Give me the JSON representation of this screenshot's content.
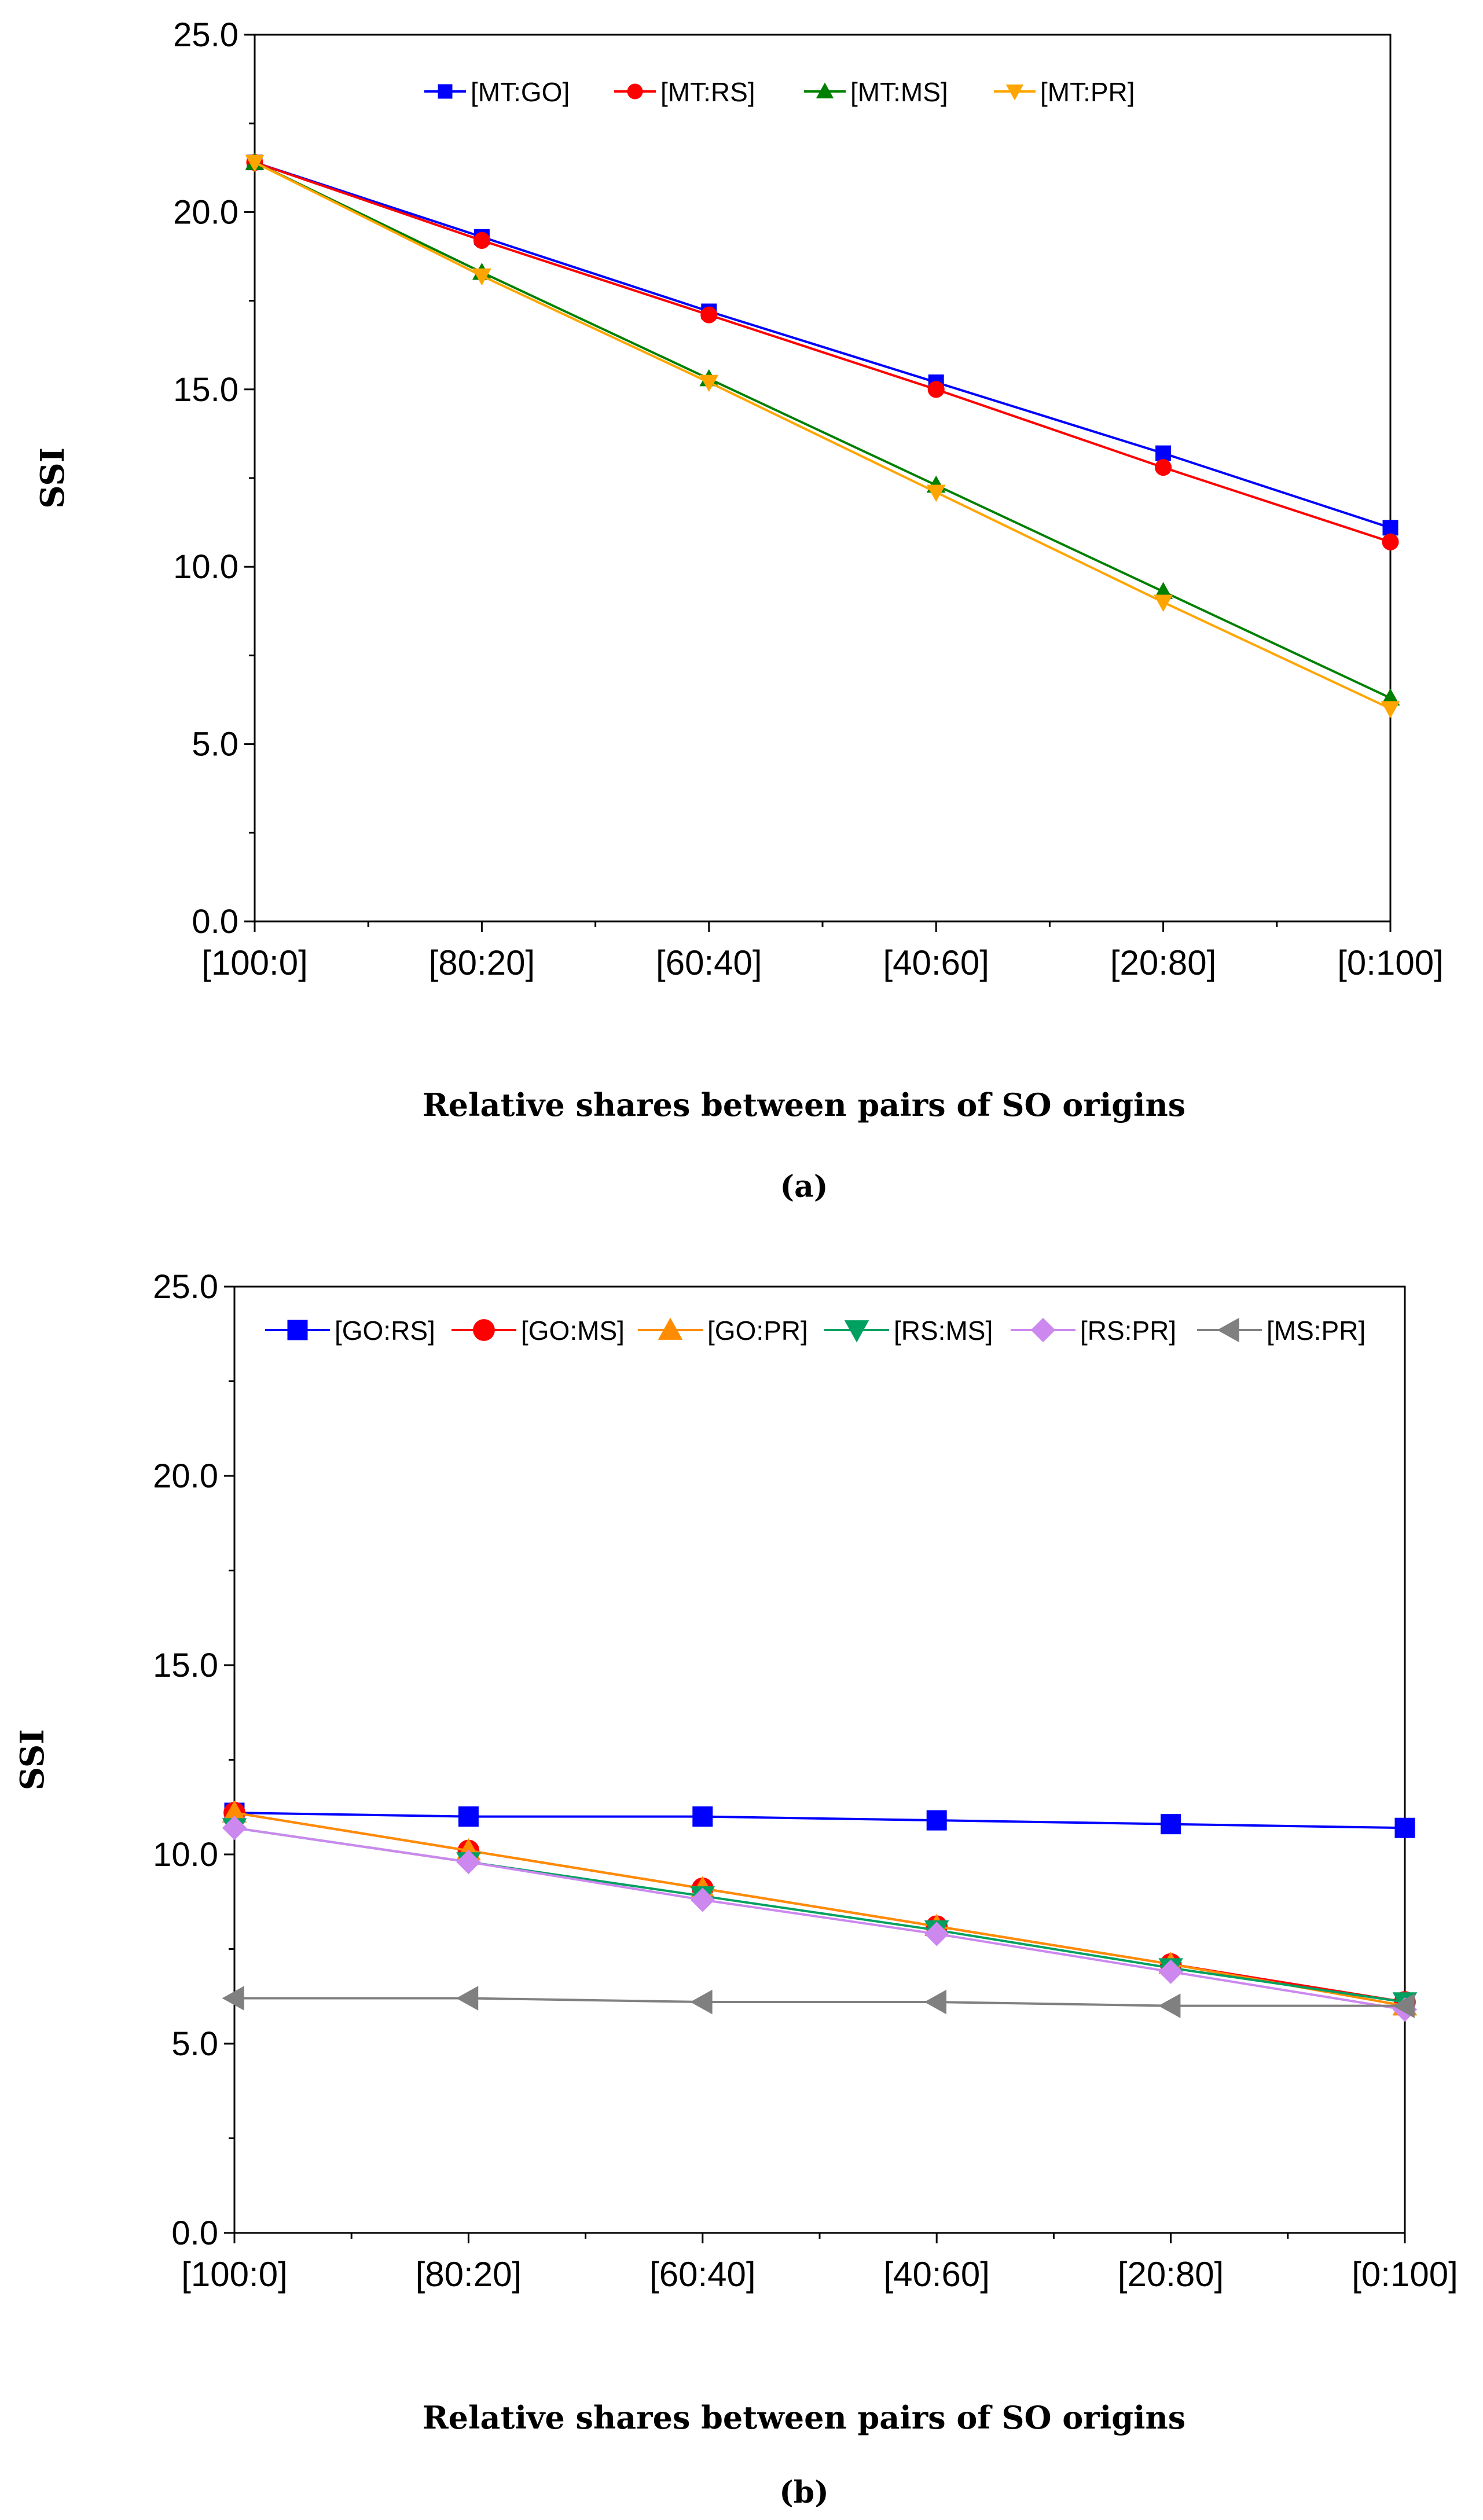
{
  "chart_data": [
    {
      "type": "line",
      "panel_label": "(a)",
      "xlabel": "Relative shares between pairs of SO origins",
      "ylabel": "SSI",
      "categories": [
        "[100:0]",
        "[80:20]",
        "[60:40]",
        "[40:60]",
        "[20:80]",
        "[0:100]"
      ],
      "ylim": [
        0,
        25
      ],
      "yticks": [
        "0.0",
        "5.0",
        "10.0",
        "15.0",
        "20.0",
        "25.0"
      ],
      "legend_position": "top-center",
      "series": [
        {
          "name": "[MT:GO]",
          "color": "#0000ff",
          "marker": "square",
          "values": [
            21.4,
            19.3,
            17.2,
            15.2,
            13.2,
            11.1
          ]
        },
        {
          "name": "[MT:RS]",
          "color": "#ff0000",
          "marker": "circle",
          "values": [
            21.4,
            19.2,
            17.1,
            15.0,
            12.8,
            10.7
          ]
        },
        {
          "name": "[MT:MS]",
          "color": "#008000",
          "marker": "triangle-up",
          "values": [
            21.4,
            18.3,
            15.3,
            12.3,
            9.3,
            6.3
          ]
        },
        {
          "name": "[MT:PR]",
          "color": "#ffa500",
          "marker": "triangle-down",
          "values": [
            21.4,
            18.2,
            15.2,
            12.1,
            9.0,
            6.0
          ]
        }
      ]
    },
    {
      "type": "line",
      "panel_label": "(b)",
      "xlabel": "Relative shares between pairs of SO origins",
      "ylabel": "SSI",
      "categories": [
        "[100:0]",
        "[80:20]",
        "[60:40]",
        "[40:60]",
        "[20:80]",
        "[0:100]"
      ],
      "ylim": [
        0,
        25
      ],
      "yticks": [
        "0.0",
        "5.0",
        "10.0",
        "15.0",
        "20.0",
        "25.0"
      ],
      "legend_position": "top-center",
      "series": [
        {
          "name": "[GO:RS]",
          "color": "#0000ff",
          "marker": "square",
          "values": [
            11.1,
            11.0,
            11.0,
            10.9,
            10.8,
            10.7
          ]
        },
        {
          "name": "[GO:MS]",
          "color": "#ff0000",
          "marker": "circle",
          "values": [
            11.1,
            10.1,
            9.1,
            8.1,
            7.1,
            6.1
          ]
        },
        {
          "name": "[GO:PR]",
          "color": "#ff8c00",
          "marker": "triangle-up",
          "values": [
            11.1,
            10.1,
            9.1,
            8.1,
            7.1,
            6.0
          ]
        },
        {
          "name": "[RS:MS]",
          "color": "#00a060",
          "marker": "triangle-down",
          "values": [
            10.7,
            9.8,
            8.9,
            8.0,
            7.0,
            6.1
          ]
        },
        {
          "name": "[RS:PR]",
          "color": "#cc88ee",
          "marker": "diamond",
          "values": [
            10.7,
            9.8,
            8.8,
            7.9,
            6.9,
            5.9
          ]
        },
        {
          "name": "[MS:PR]",
          "color": "#808080",
          "marker": "triangle-left",
          "values": [
            6.2,
            6.2,
            6.1,
            6.1,
            6.0,
            6.0
          ]
        }
      ]
    }
  ]
}
